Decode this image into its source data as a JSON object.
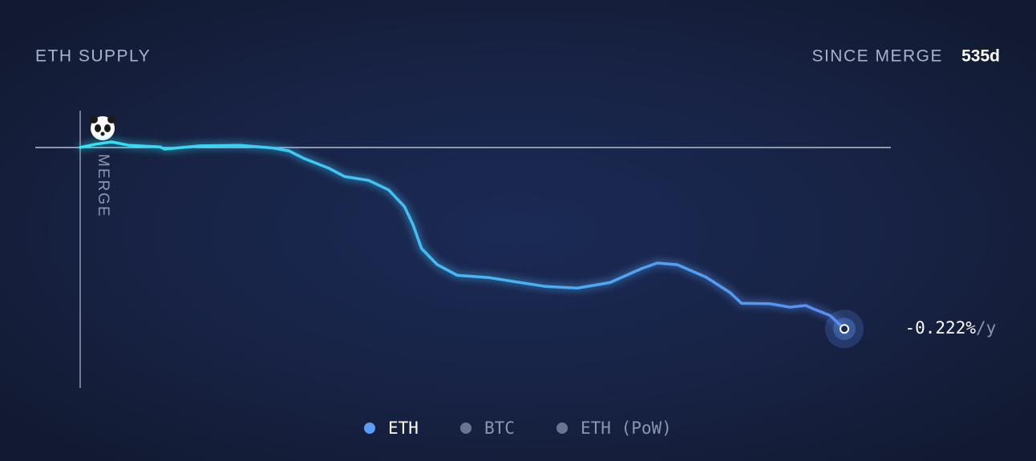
{
  "chart_data": {
    "type": "line",
    "title": "ETH SUPPLY",
    "since_label": "SINCE MERGE",
    "since_value": "535d",
    "annotation": "MERGE",
    "end_label": "-0.222%",
    "end_unit": "/y",
    "x": [
      0,
      11,
      22,
      34,
      56,
      59,
      84,
      112,
      135,
      146,
      157,
      174,
      185,
      202,
      216,
      227,
      233,
      239,
      250,
      264,
      286,
      303,
      326,
      348,
      371,
      393,
      404,
      418,
      438,
      455,
      463,
      483,
      497,
      508,
      514,
      525,
      535
    ],
    "series": [
      {
        "name": "ETH",
        "color": "#5b93f0",
        "gradient": [
          "#2fe4f7",
          "#5b8cf0"
        ],
        "values": [
          0,
          0.006,
          0.01,
          0.004,
          0.001,
          -0.003,
          0.003,
          0.004,
          -0.001,
          -0.006,
          -0.02,
          -0.037,
          -0.052,
          -0.059,
          -0.076,
          -0.106,
          -0.138,
          -0.181,
          -0.21,
          -0.229,
          -0.233,
          -0.24,
          -0.249,
          -0.252,
          -0.242,
          -0.217,
          -0.207,
          -0.21,
          -0.232,
          -0.26,
          -0.279,
          -0.28,
          -0.286,
          -0.283,
          -0.29,
          -0.301,
          -0.325
        ]
      }
    ],
    "legend": [
      {
        "name": "ETH",
        "color": "#5b9cf5",
        "active": true
      },
      {
        "name": "BTC",
        "color": "#6b7591",
        "active": false
      },
      {
        "name": "ETH (PoW)",
        "color": "#6b7591",
        "active": false
      }
    ],
    "xlim": [
      0,
      535
    ],
    "ylim": [
      -0.431,
      0.066
    ]
  }
}
